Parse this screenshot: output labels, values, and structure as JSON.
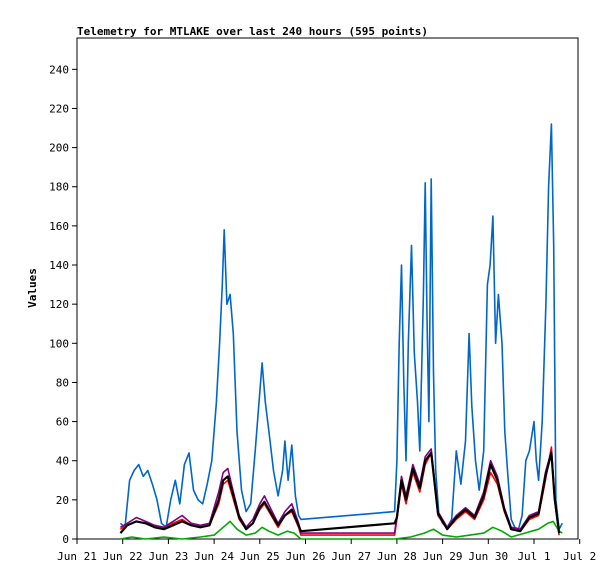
{
  "chart_data": {
    "type": "line",
    "title": "Telemetry for MTLAKE over last 240 hours (595 points)",
    "xlabel": "",
    "ylabel": "Values",
    "x_tick_labels": [
      "Jun 21",
      "Jun 22",
      "Jun 23",
      "Jun 24",
      "Jun 25",
      "Jun 26",
      "Jun 27",
      "Jun 28",
      "Jun 29",
      "Jun 30",
      "Jul 1",
      "Jul 2"
    ],
    "xlim": [
      0,
      11
    ],
    "y_ticks": [
      0,
      20,
      40,
      60,
      80,
      100,
      120,
      140,
      160,
      180,
      200,
      220,
      240
    ],
    "ylim": [
      0,
      256
    ],
    "grid": false,
    "legend": "none",
    "series": [
      {
        "color": "#0066cc",
        "points": [
          [
            0.95,
            8
          ],
          [
            1.05,
            6
          ],
          [
            1.15,
            30
          ],
          [
            1.25,
            35
          ],
          [
            1.35,
            38
          ],
          [
            1.45,
            32
          ],
          [
            1.55,
            35
          ],
          [
            1.65,
            28
          ],
          [
            1.75,
            20
          ],
          [
            1.85,
            8
          ],
          [
            1.95,
            6
          ],
          [
            2.05,
            20
          ],
          [
            2.15,
            30
          ],
          [
            2.25,
            18
          ],
          [
            2.35,
            38
          ],
          [
            2.45,
            44
          ],
          [
            2.55,
            25
          ],
          [
            2.65,
            20
          ],
          [
            2.75,
            18
          ],
          [
            2.85,
            28
          ],
          [
            2.95,
            40
          ],
          [
            3.05,
            70
          ],
          [
            3.12,
            100
          ],
          [
            3.18,
            130
          ],
          [
            3.22,
            158
          ],
          [
            3.28,
            120
          ],
          [
            3.35,
            125
          ],
          [
            3.42,
            105
          ],
          [
            3.5,
            55
          ],
          [
            3.6,
            25
          ],
          [
            3.7,
            14
          ],
          [
            3.8,
            18
          ],
          [
            3.9,
            45
          ],
          [
            4.0,
            75
          ],
          [
            4.05,
            90
          ],
          [
            4.12,
            70
          ],
          [
            4.2,
            55
          ],
          [
            4.3,
            35
          ],
          [
            4.4,
            22
          ],
          [
            4.5,
            35
          ],
          [
            4.55,
            50
          ],
          [
            4.62,
            30
          ],
          [
            4.7,
            48
          ],
          [
            4.78,
            22
          ],
          [
            4.85,
            12
          ],
          [
            4.9,
            10
          ],
          [
            6.95,
            14
          ],
          [
            7.0,
            40
          ],
          [
            7.05,
            100
          ],
          [
            7.1,
            140
          ],
          [
            7.15,
            80
          ],
          [
            7.2,
            40
          ],
          [
            7.25,
            100
          ],
          [
            7.32,
            150
          ],
          [
            7.38,
            95
          ],
          [
            7.45,
            70
          ],
          [
            7.5,
            45
          ],
          [
            7.58,
            125
          ],
          [
            7.62,
            182
          ],
          [
            7.66,
            110
          ],
          [
            7.7,
            60
          ],
          [
            7.75,
            184
          ],
          [
            7.8,
            85
          ],
          [
            7.85,
            35
          ],
          [
            7.92,
            12
          ],
          [
            8.0,
            8
          ],
          [
            8.1,
            6
          ],
          [
            8.2,
            10
          ],
          [
            8.3,
            45
          ],
          [
            8.4,
            28
          ],
          [
            8.5,
            50
          ],
          [
            8.58,
            105
          ],
          [
            8.64,
            68
          ],
          [
            8.72,
            40
          ],
          [
            8.8,
            25
          ],
          [
            8.9,
            45
          ],
          [
            8.98,
            130
          ],
          [
            9.04,
            140
          ],
          [
            9.1,
            165
          ],
          [
            9.16,
            100
          ],
          [
            9.22,
            125
          ],
          [
            9.3,
            100
          ],
          [
            9.36,
            55
          ],
          [
            9.42,
            35
          ],
          [
            9.5,
            10
          ],
          [
            9.58,
            6
          ],
          [
            9.66,
            5
          ],
          [
            9.74,
            12
          ],
          [
            9.82,
            40
          ],
          [
            9.9,
            45
          ],
          [
            10.0,
            60
          ],
          [
            10.05,
            40
          ],
          [
            10.1,
            30
          ],
          [
            10.18,
            60
          ],
          [
            10.26,
            120
          ],
          [
            10.32,
            180
          ],
          [
            10.38,
            212
          ],
          [
            10.43,
            150
          ],
          [
            10.48,
            20
          ],
          [
            10.55,
            5
          ],
          [
            10.62,
            8
          ]
        ]
      },
      {
        "color": "#ff0000",
        "points": [
          [
            0.95,
            5
          ],
          [
            1.1,
            7
          ],
          [
            1.3,
            9
          ],
          [
            1.5,
            8
          ],
          [
            1.7,
            6
          ],
          [
            1.9,
            5
          ],
          [
            2.1,
            8
          ],
          [
            2.3,
            10
          ],
          [
            2.5,
            7
          ],
          [
            2.7,
            6
          ],
          [
            2.9,
            7
          ],
          [
            3.1,
            18
          ],
          [
            3.2,
            28
          ],
          [
            3.3,
            30
          ],
          [
            3.4,
            22
          ],
          [
            3.55,
            10
          ],
          [
            3.7,
            5
          ],
          [
            3.85,
            8
          ],
          [
            4.0,
            15
          ],
          [
            4.1,
            18
          ],
          [
            4.25,
            12
          ],
          [
            4.4,
            6
          ],
          [
            4.55,
            12
          ],
          [
            4.7,
            14
          ],
          [
            4.85,
            6
          ],
          [
            4.9,
            2
          ],
          [
            6.95,
            2
          ],
          [
            7.0,
            10
          ],
          [
            7.1,
            28
          ],
          [
            7.2,
            18
          ],
          [
            7.35,
            34
          ],
          [
            7.5,
            24
          ],
          [
            7.62,
            38
          ],
          [
            7.75,
            44
          ],
          [
            7.9,
            12
          ],
          [
            8.1,
            5
          ],
          [
            8.3,
            10
          ],
          [
            8.5,
            14
          ],
          [
            8.7,
            10
          ],
          [
            8.9,
            20
          ],
          [
            9.05,
            34
          ],
          [
            9.2,
            28
          ],
          [
            9.35,
            14
          ],
          [
            9.5,
            5
          ],
          [
            9.7,
            4
          ],
          [
            9.9,
            10
          ],
          [
            10.1,
            12
          ],
          [
            10.25,
            30
          ],
          [
            10.38,
            47
          ],
          [
            10.45,
            20
          ],
          [
            10.55,
            2
          ]
        ]
      },
      {
        "color": "#800080",
        "points": [
          [
            0.95,
            6
          ],
          [
            1.1,
            8
          ],
          [
            1.3,
            11
          ],
          [
            1.5,
            9
          ],
          [
            1.7,
            7
          ],
          [
            1.9,
            6
          ],
          [
            2.1,
            9
          ],
          [
            2.3,
            12
          ],
          [
            2.5,
            8
          ],
          [
            2.7,
            7
          ],
          [
            2.9,
            8
          ],
          [
            3.1,
            24
          ],
          [
            3.2,
            34
          ],
          [
            3.3,
            36
          ],
          [
            3.4,
            26
          ],
          [
            3.55,
            12
          ],
          [
            3.7,
            6
          ],
          [
            3.85,
            10
          ],
          [
            4.0,
            18
          ],
          [
            4.1,
            22
          ],
          [
            4.25,
            15
          ],
          [
            4.4,
            8
          ],
          [
            4.55,
            14
          ],
          [
            4.7,
            18
          ],
          [
            4.85,
            8
          ],
          [
            4.9,
            3
          ],
          [
            6.95,
            3
          ],
          [
            7.0,
            12
          ],
          [
            7.1,
            32
          ],
          [
            7.2,
            22
          ],
          [
            7.35,
            38
          ],
          [
            7.5,
            28
          ],
          [
            7.62,
            42
          ],
          [
            7.75,
            46
          ],
          [
            7.9,
            14
          ],
          [
            8.1,
            6
          ],
          [
            8.3,
            12
          ],
          [
            8.5,
            16
          ],
          [
            8.7,
            12
          ],
          [
            8.9,
            24
          ],
          [
            9.05,
            40
          ],
          [
            9.2,
            32
          ],
          [
            9.35,
            16
          ],
          [
            9.5,
            6
          ],
          [
            9.7,
            5
          ],
          [
            9.9,
            12
          ],
          [
            10.1,
            14
          ],
          [
            10.25,
            34
          ],
          [
            10.38,
            45
          ],
          [
            10.45,
            22
          ],
          [
            10.55,
            3
          ]
        ]
      },
      {
        "color": "#00aa00",
        "points": [
          [
            0.95,
            0
          ],
          [
            1.2,
            1
          ],
          [
            1.5,
            0
          ],
          [
            1.9,
            1
          ],
          [
            2.3,
            0
          ],
          [
            2.7,
            1
          ],
          [
            3.0,
            2
          ],
          [
            3.2,
            6
          ],
          [
            3.35,
            9
          ],
          [
            3.5,
            5
          ],
          [
            3.7,
            2
          ],
          [
            3.9,
            3
          ],
          [
            4.05,
            6
          ],
          [
            4.2,
            4
          ],
          [
            4.4,
            2
          ],
          [
            4.6,
            4
          ],
          [
            4.75,
            3
          ],
          [
            4.9,
            0
          ],
          [
            6.95,
            0
          ],
          [
            7.3,
            1
          ],
          [
            7.6,
            3
          ],
          [
            7.8,
            5
          ],
          [
            8.0,
            2
          ],
          [
            8.3,
            1
          ],
          [
            8.6,
            2
          ],
          [
            8.9,
            3
          ],
          [
            9.1,
            6
          ],
          [
            9.3,
            4
          ],
          [
            9.5,
            1
          ],
          [
            9.8,
            3
          ],
          [
            10.1,
            5
          ],
          [
            10.3,
            8
          ],
          [
            10.42,
            9
          ],
          [
            10.55,
            4
          ],
          [
            10.62,
            3
          ]
        ]
      },
      {
        "color": "#000000",
        "points": [
          [
            0.95,
            3
          ],
          [
            1.1,
            7
          ],
          [
            1.3,
            9
          ],
          [
            1.5,
            8
          ],
          [
            1.7,
            6
          ],
          [
            1.9,
            5
          ],
          [
            2.1,
            7
          ],
          [
            2.3,
            9
          ],
          [
            2.5,
            7
          ],
          [
            2.7,
            6
          ],
          [
            2.9,
            7
          ],
          [
            3.1,
            20
          ],
          [
            3.2,
            30
          ],
          [
            3.3,
            32
          ],
          [
            3.4,
            24
          ],
          [
            3.55,
            11
          ],
          [
            3.7,
            5
          ],
          [
            3.85,
            8
          ],
          [
            4.0,
            16
          ],
          [
            4.1,
            19
          ],
          [
            4.25,
            13
          ],
          [
            4.4,
            7
          ],
          [
            4.55,
            12
          ],
          [
            4.7,
            15
          ],
          [
            4.85,
            7
          ],
          [
            4.9,
            4
          ],
          [
            6.95,
            8
          ],
          [
            7.0,
            11
          ],
          [
            7.1,
            30
          ],
          [
            7.2,
            20
          ],
          [
            7.35,
            36
          ],
          [
            7.5,
            26
          ],
          [
            7.62,
            40
          ],
          [
            7.75,
            44
          ],
          [
            7.9,
            13
          ],
          [
            8.1,
            5
          ],
          [
            8.3,
            11
          ],
          [
            8.5,
            15
          ],
          [
            8.7,
            11
          ],
          [
            8.9,
            22
          ],
          [
            9.05,
            38
          ],
          [
            9.2,
            30
          ],
          [
            9.35,
            15
          ],
          [
            9.5,
            5
          ],
          [
            9.7,
            4
          ],
          [
            9.9,
            11
          ],
          [
            10.1,
            13
          ],
          [
            10.25,
            32
          ],
          [
            10.38,
            44
          ],
          [
            10.45,
            21
          ],
          [
            10.55,
            3
          ]
        ]
      }
    ]
  }
}
